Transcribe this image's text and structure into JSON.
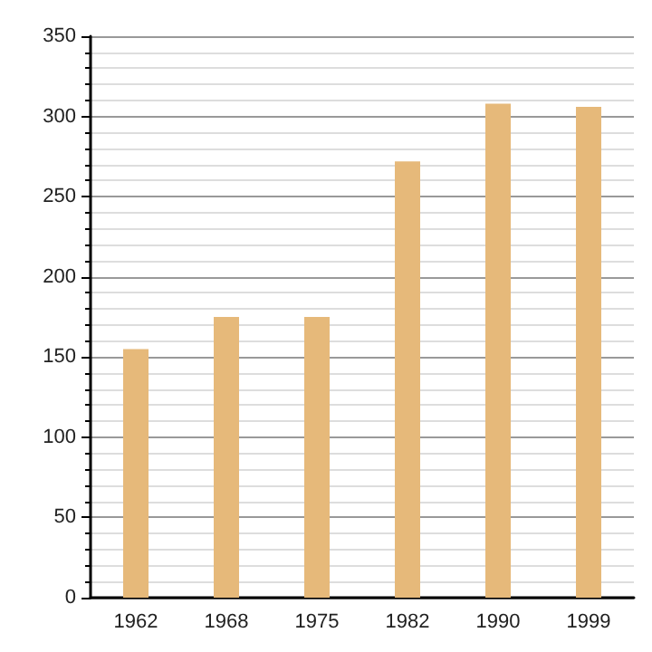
{
  "chart_data": {
    "type": "bar",
    "categories": [
      "1962",
      "1968",
      "1975",
      "1982",
      "1990",
      "1999"
    ],
    "values": [
      155,
      175,
      175,
      272,
      308,
      306
    ],
    "color": "#e6b97a",
    "ylim": [
      0,
      350
    ],
    "yticks": [
      0,
      50,
      100,
      150,
      200,
      250,
      300,
      350
    ],
    "grid": "y"
  }
}
